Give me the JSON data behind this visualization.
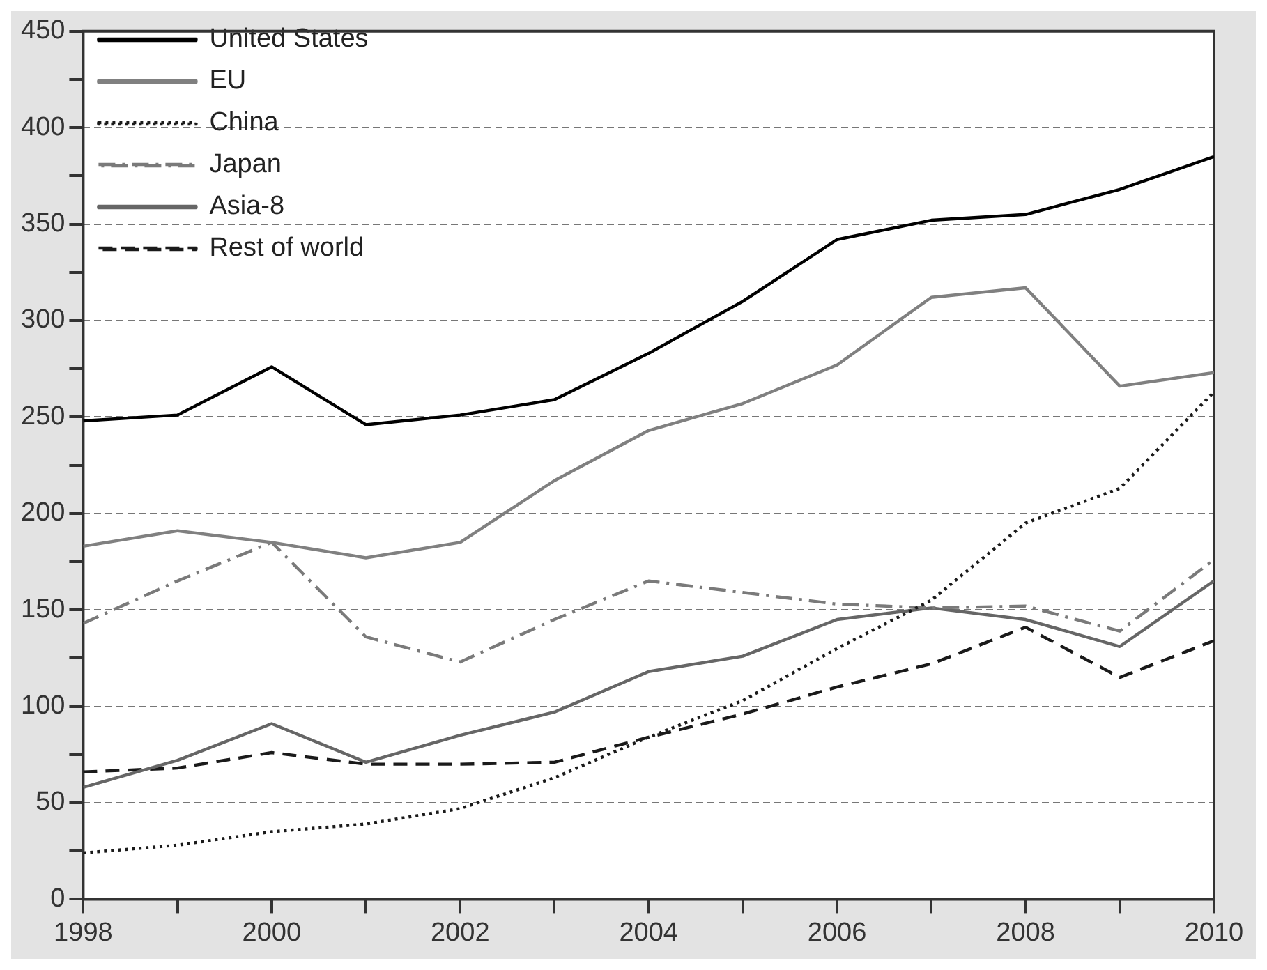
{
  "chart_data": {
    "type": "line",
    "x": [
      1998,
      1999,
      2000,
      2001,
      2002,
      2003,
      2004,
      2005,
      2006,
      2007,
      2008,
      2009,
      2010
    ],
    "series": [
      {
        "name": "United States",
        "color": "#000000",
        "line_style": "solid",
        "values": [
          248,
          251,
          276,
          246,
          251,
          259,
          283,
          310,
          342,
          352,
          355,
          368,
          385
        ]
      },
      {
        "name": "EU",
        "color": "#808080",
        "line_style": "solid",
        "values": [
          183,
          191,
          185,
          177,
          185,
          217,
          243,
          257,
          277,
          312,
          317,
          266,
          273
        ]
      },
      {
        "name": "China",
        "color": "#1a1a1a",
        "line_style": "dotted",
        "values": [
          24,
          28,
          35,
          39,
          47,
          63,
          84,
          103,
          130,
          155,
          195,
          213,
          263
        ]
      },
      {
        "name": "Japan",
        "color": "#7a7a7a",
        "line_style": "dashdot",
        "values": [
          143,
          165,
          185,
          136,
          123,
          145,
          165,
          159,
          153,
          151,
          152,
          139,
          176
        ]
      },
      {
        "name": "Asia-8",
        "color": "#666666",
        "line_style": "solid",
        "values": [
          58,
          72,
          91,
          71,
          85,
          97,
          118,
          126,
          145,
          151,
          145,
          131,
          165
        ]
      },
      {
        "name": "Rest of world",
        "color": "#1a1a1a",
        "line_style": "dashed",
        "values": [
          66,
          68,
          76,
          70,
          70,
          71,
          84,
          96,
          110,
          122,
          141,
          115,
          134
        ]
      }
    ],
    "xlim": [
      1998,
      2010
    ],
    "xticks": [
      1998,
      {
        "value": 1999,
        "label": null
      },
      2000,
      {
        "value": 2001,
        "label": null
      },
      2002,
      {
        "value": 2003,
        "label": null
      },
      2004,
      {
        "value": 2005,
        "label": null
      },
      2006,
      {
        "value": 2007,
        "label": null
      },
      2008,
      {
        "value": 2009,
        "label": null
      },
      2010
    ],
    "ylim": [
      0,
      450
    ],
    "yticks": [
      0,
      {
        "value": 25,
        "label": null
      },
      50,
      {
        "value": 75,
        "label": null
      },
      100,
      {
        "value": 125,
        "label": null
      },
      150,
      {
        "value": 175,
        "label": null
      },
      200,
      {
        "value": 225,
        "label": null
      },
      250,
      {
        "value": 275,
        "label": null
      },
      300,
      {
        "value": 325,
        "label": null
      },
      350,
      {
        "value": 375,
        "label": null
      },
      400,
      {
        "value": 425,
        "label": null
      },
      450
    ],
    "grid": "y",
    "legend": "top left",
    "marker": "none"
  }
}
